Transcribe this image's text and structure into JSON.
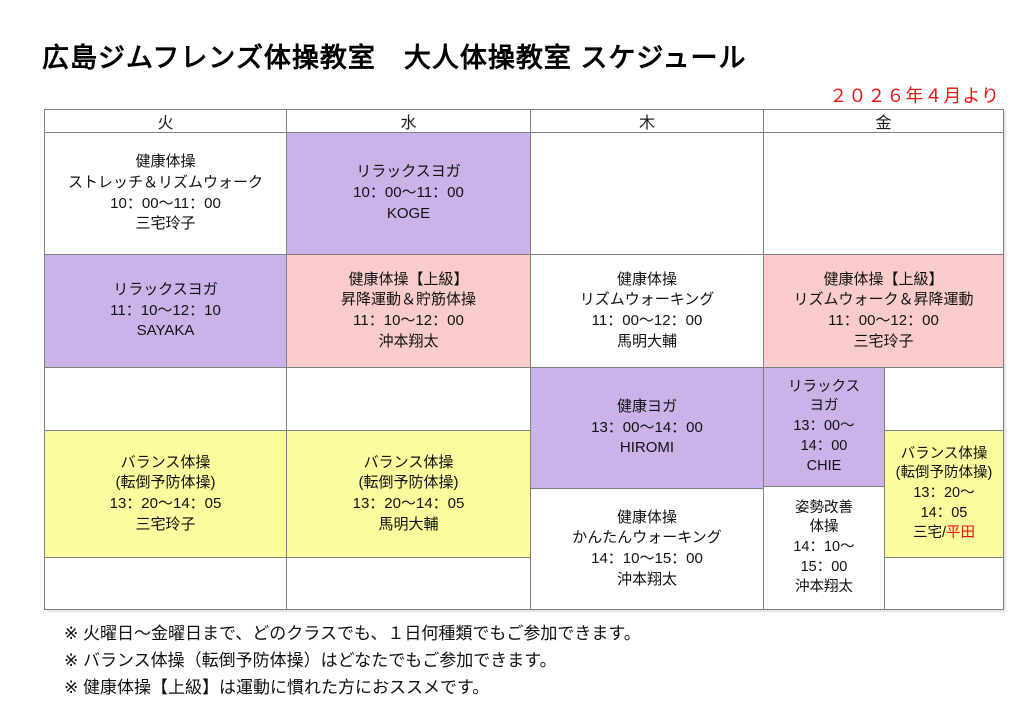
{
  "page": {
    "title": "広島ジムフレンズ体操教室　大人体操教室 スケジュール",
    "effective_date": "２０２６年４月より"
  },
  "colors": {
    "purple": "#cbb3ea",
    "pink": "#f9cccb",
    "yellow": "#fcfc9f",
    "red": "#ee1111",
    "border": "#7f7f7f"
  },
  "table": {
    "headers": [
      "火",
      "水",
      "木",
      "金"
    ],
    "tuesday": {
      "slot1": {
        "lines": [
          "健康体操",
          "ストレッチ＆リズムウォーク",
          "10：00～11：00",
          "三宅玲子"
        ]
      },
      "slot2": {
        "lines": [
          "リラックスヨガ",
          "11：10～12：10",
          "SAYAKA"
        ]
      },
      "slot3": {
        "lines": [
          "バランス体操",
          "(転倒予防体操)",
          "13：20～14：05",
          "三宅玲子"
        ]
      }
    },
    "wednesday": {
      "slot1": {
        "lines": [
          "リラックスヨガ",
          "10：00～11：00",
          "KOGE"
        ]
      },
      "slot2": {
        "lines": [
          "健康体操【上級】",
          "昇降運動＆貯筋体操",
          "11：10～12：00",
          "沖本翔太"
        ]
      },
      "slot3": {
        "lines": [
          "バランス体操",
          "(転倒予防体操)",
          "13：20～14：05",
          "馬明大輔"
        ]
      }
    },
    "thursday": {
      "slot1": {
        "lines": [
          "健康体操",
          "リズムウォーキング",
          "11：00～12：00",
          "馬明大輔"
        ]
      },
      "slot2": {
        "lines": [
          "健康ヨガ",
          "13：00～14：00",
          "HIROMI"
        ]
      },
      "slot3": {
        "lines": [
          "健康体操",
          "かんたんウォーキング",
          "14：10～15：00",
          "沖本翔太"
        ]
      }
    },
    "friday": {
      "slot1": {
        "lines": [
          "健康体操【上級】",
          "リズムウォーク＆昇降運動",
          "11：00～12：00",
          "三宅玲子"
        ]
      },
      "slot2": {
        "lines": [
          "リラックス",
          "ヨガ",
          "13：00～",
          "14：00",
          "CHIE"
        ]
      },
      "slot3": {
        "lines": [
          "姿勢改善",
          "体操",
          "14：10～",
          "15：00",
          "沖本翔太"
        ]
      },
      "slot4": {
        "lines": [
          "バランス体操",
          "(転倒予防体操)",
          "13：20～",
          "14：05"
        ],
        "instructor_black": "三宅/",
        "instructor_red": "平田"
      }
    }
  },
  "notes": [
    "※ 火曜日～金曜日まで、どのクラスでも、１日何種類でもご参加できます。",
    "※ バランス体操（転倒予防体操）はどなたでもご参加できます。",
    "※ 健康体操【上級】は運動に慣れた方におススメです。"
  ]
}
